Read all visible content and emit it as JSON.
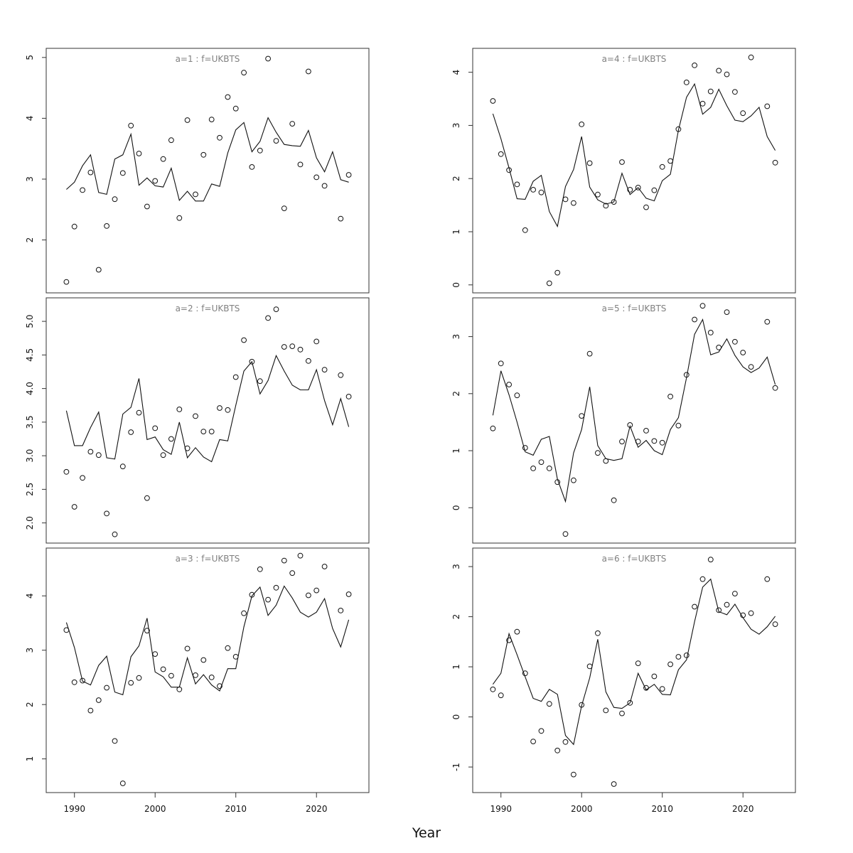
{
  "chart_data": {
    "type": "line",
    "xlabel": "Year",
    "x": [
      1989,
      1990,
      1991,
      1992,
      1993,
      1994,
      1995,
      1996,
      1997,
      1998,
      1999,
      2000,
      2001,
      2002,
      2003,
      2004,
      2005,
      2006,
      2007,
      2008,
      2009,
      2010,
      2011,
      2012,
      2013,
      2014,
      2015,
      2016,
      2017,
      2018,
      2019,
      2020,
      2021,
      2022,
      2023,
      2024
    ],
    "xticks": [
      1990,
      2000,
      2010,
      2020
    ],
    "xlim": [
      1986.5,
      2026.5
    ],
    "colors": {
      "line": "#111111",
      "points": "#111111",
      "title": "#808080",
      "frame": "#333333"
    },
    "panels": [
      {
        "title": "a=1  :  f=UKBTS",
        "ylim": [
          1.13,
          5.15
        ],
        "yticks": [
          2,
          3,
          4,
          5
        ],
        "ytick_labels": [
          "2",
          "3",
          "4",
          "5"
        ],
        "fitted": [
          2.83,
          2.95,
          3.22,
          3.4,
          2.78,
          2.75,
          3.33,
          3.4,
          3.74,
          2.9,
          3.02,
          2.89,
          2.87,
          3.18,
          2.65,
          2.8,
          2.64,
          2.64,
          2.92,
          2.88,
          3.43,
          3.81,
          3.93,
          3.45,
          3.62,
          4.01,
          3.77,
          3.57,
          3.55,
          3.54,
          3.8,
          3.35,
          3.12,
          3.45,
          2.99,
          2.95
        ],
        "observed": [
          [
            1989,
            1.31
          ],
          [
            1990,
            2.22
          ],
          [
            1991,
            2.82
          ],
          [
            1992,
            3.11
          ],
          [
            1993,
            1.51
          ],
          [
            1994,
            2.23
          ],
          [
            1995,
            2.67
          ],
          [
            1996,
            3.1
          ],
          [
            1997,
            3.88
          ],
          [
            1998,
            3.42
          ],
          [
            1999,
            2.55
          ],
          [
            2000,
            2.97
          ],
          [
            2001,
            3.33
          ],
          [
            2002,
            3.64
          ],
          [
            2003,
            2.36
          ],
          [
            2004,
            3.97
          ],
          [
            2006,
            3.4
          ],
          [
            2005,
            2.75
          ],
          [
            2007,
            3.98
          ],
          [
            2008,
            3.68
          ],
          [
            2009,
            4.35
          ],
          [
            2010,
            4.16
          ],
          [
            2011,
            4.75
          ],
          [
            2012,
            3.2
          ],
          [
            2013,
            3.47
          ],
          [
            2014,
            4.98
          ],
          [
            2015,
            3.63
          ],
          [
            2016,
            2.52
          ],
          [
            2017,
            3.91
          ],
          [
            2018,
            3.24
          ],
          [
            2019,
            4.77
          ],
          [
            2020,
            3.03
          ],
          [
            2021,
            2.89
          ],
          [
            2023,
            2.35
          ],
          [
            2024,
            3.07
          ]
        ]
      },
      {
        "title": "a=2  :  f=UKBTS",
        "ylim": [
          1.7,
          5.35
        ],
        "yticks": [
          2.0,
          2.5,
          3.0,
          3.5,
          4.0,
          4.5,
          5.0
        ],
        "ytick_labels": [
          "2.0",
          "2.5",
          "3.0",
          "3.5",
          "4.0",
          "4.5",
          "5.0"
        ],
        "fitted": [
          3.67,
          3.15,
          3.15,
          3.42,
          3.65,
          2.97,
          2.95,
          3.62,
          3.72,
          4.15,
          3.24,
          3.28,
          3.09,
          3.02,
          3.5,
          2.97,
          3.12,
          2.98,
          2.91,
          3.24,
          3.22,
          3.75,
          4.26,
          4.4,
          3.92,
          4.12,
          4.49,
          4.26,
          4.05,
          3.98,
          3.98,
          4.28,
          3.82,
          3.46,
          3.85,
          3.43
        ],
        "observed": [
          [
            1989,
            2.76
          ],
          [
            1990,
            2.24
          ],
          [
            1991,
            2.67
          ],
          [
            1992,
            3.06
          ],
          [
            1993,
            3.01
          ],
          [
            1994,
            2.14
          ],
          [
            1995,
            1.83
          ],
          [
            1996,
            2.84
          ],
          [
            1997,
            3.35
          ],
          [
            1998,
            3.64
          ],
          [
            1999,
            2.37
          ],
          [
            2000,
            3.41
          ],
          [
            2001,
            3.01
          ],
          [
            2002,
            3.25
          ],
          [
            2003,
            3.69
          ],
          [
            2004,
            3.11
          ],
          [
            2005,
            3.59
          ],
          [
            2006,
            3.36
          ],
          [
            2007,
            3.36
          ],
          [
            2008,
            3.71
          ],
          [
            2009,
            3.68
          ],
          [
            2010,
            4.17
          ],
          [
            2011,
            4.72
          ],
          [
            2012,
            4.4
          ],
          [
            2013,
            4.11
          ],
          [
            2014,
            5.05
          ],
          [
            2015,
            5.18
          ],
          [
            2016,
            4.62
          ],
          [
            2017,
            4.63
          ],
          [
            2018,
            4.58
          ],
          [
            2019,
            4.41
          ],
          [
            2020,
            4.7
          ],
          [
            2021,
            4.28
          ],
          [
            2023,
            4.2
          ],
          [
            2024,
            3.88
          ]
        ]
      },
      {
        "title": "a=3  :  f=UKBTS",
        "ylim": [
          0.38,
          4.88
        ],
        "yticks": [
          1,
          2,
          3,
          4
        ],
        "ytick_labels": [
          "1",
          "2",
          "3",
          "4"
        ],
        "fitted": [
          3.51,
          3.05,
          2.43,
          2.36,
          2.72,
          2.89,
          2.23,
          2.18,
          2.88,
          3.08,
          3.59,
          2.6,
          2.51,
          2.32,
          2.32,
          2.86,
          2.38,
          2.55,
          2.36,
          2.25,
          2.66,
          2.66,
          3.43,
          4.0,
          4.16,
          3.64,
          3.83,
          4.18,
          3.96,
          3.7,
          3.61,
          3.7,
          3.95,
          3.4,
          3.06,
          3.56
        ],
        "observed": [
          [
            1989,
            3.37
          ],
          [
            1990,
            2.41
          ],
          [
            1991,
            2.44
          ],
          [
            1992,
            1.89
          ],
          [
            1993,
            2.08
          ],
          [
            1994,
            2.31
          ],
          [
            1995,
            1.33
          ],
          [
            1996,
            0.55
          ],
          [
            1997,
            2.4
          ],
          [
            1998,
            2.49
          ],
          [
            1999,
            3.36
          ],
          [
            2000,
            2.93
          ],
          [
            2001,
            2.65
          ],
          [
            2002,
            2.53
          ],
          [
            2003,
            2.28
          ],
          [
            2004,
            3.03
          ],
          [
            2005,
            2.54
          ],
          [
            2006,
            2.82
          ],
          [
            2007,
            2.5
          ],
          [
            2008,
            2.34
          ],
          [
            2009,
            3.04
          ],
          [
            2010,
            2.88
          ],
          [
            2011,
            3.68
          ],
          [
            2012,
            4.02
          ],
          [
            2013,
            4.49
          ],
          [
            2014,
            3.93
          ],
          [
            2015,
            4.15
          ],
          [
            2016,
            4.65
          ],
          [
            2017,
            4.42
          ],
          [
            2018,
            4.74
          ],
          [
            2019,
            4.01
          ],
          [
            2020,
            4.1
          ],
          [
            2021,
            4.54
          ],
          [
            2023,
            3.73
          ],
          [
            2024,
            4.03
          ]
        ]
      },
      {
        "title": "a=4  :  f=UKBTS",
        "ylim": [
          -0.15,
          4.45
        ],
        "yticks": [
          0,
          1,
          2,
          3,
          4
        ],
        "ytick_labels": [
          "0",
          "1",
          "2",
          "3",
          "4"
        ],
        "fitted": [
          3.22,
          2.75,
          2.2,
          1.62,
          1.61,
          1.95,
          2.06,
          1.38,
          1.1,
          1.85,
          2.17,
          2.79,
          1.84,
          1.6,
          1.52,
          1.56,
          2.1,
          1.7,
          1.83,
          1.63,
          1.58,
          1.96,
          2.08,
          2.91,
          3.53,
          3.78,
          3.21,
          3.34,
          3.68,
          3.37,
          3.1,
          3.07,
          3.18,
          3.34,
          2.79,
          2.53
        ],
        "observed": [
          [
            1989,
            3.46
          ],
          [
            1990,
            2.46
          ],
          [
            1991,
            2.16
          ],
          [
            1992,
            1.89
          ],
          [
            1993,
            1.03
          ],
          [
            1994,
            1.79
          ],
          [
            1995,
            1.74
          ],
          [
            1996,
            0.03
          ],
          [
            1997,
            0.23
          ],
          [
            1998,
            1.61
          ],
          [
            1999,
            1.54
          ],
          [
            2000,
            3.02
          ],
          [
            2001,
            2.29
          ],
          [
            2002,
            1.7
          ],
          [
            2003,
            1.49
          ],
          [
            2004,
            1.56
          ],
          [
            2005,
            2.31
          ],
          [
            2006,
            1.79
          ],
          [
            2007,
            1.83
          ],
          [
            2008,
            1.46
          ],
          [
            2009,
            1.78
          ],
          [
            2010,
            2.22
          ],
          [
            2011,
            2.33
          ],
          [
            2012,
            2.93
          ],
          [
            2013,
            3.81
          ],
          [
            2014,
            4.13
          ],
          [
            2015,
            3.41
          ],
          [
            2016,
            3.64
          ],
          [
            2017,
            4.03
          ],
          [
            2018,
            3.96
          ],
          [
            2019,
            3.63
          ],
          [
            2020,
            3.23
          ],
          [
            2021,
            4.28
          ],
          [
            2023,
            3.36
          ],
          [
            2024,
            2.3
          ]
        ]
      },
      {
        "title": "a=5  :  f=UKBTS",
        "ylim": [
          -0.62,
          3.68
        ],
        "yticks": [
          0,
          1,
          2,
          3
        ],
        "ytick_labels": [
          "0",
          "1",
          "2",
          "3"
        ],
        "fitted": [
          1.62,
          2.4,
          1.98,
          1.5,
          0.98,
          0.92,
          1.2,
          1.25,
          0.5,
          0.11,
          0.96,
          1.37,
          2.12,
          1.09,
          0.86,
          0.83,
          0.86,
          1.43,
          1.06,
          1.18,
          1.0,
          0.93,
          1.37,
          1.58,
          2.28,
          3.04,
          3.3,
          2.68,
          2.73,
          2.96,
          2.67,
          2.47,
          2.37,
          2.45,
          2.64,
          2.16
        ],
        "observed": [
          [
            1989,
            1.39
          ],
          [
            1990,
            2.53
          ],
          [
            1991,
            2.16
          ],
          [
            1992,
            1.97
          ],
          [
            1993,
            1.05
          ],
          [
            1994,
            0.69
          ],
          [
            1995,
            0.8
          ],
          [
            1996,
            0.69
          ],
          [
            1997,
            0.45
          ],
          [
            1998,
            -0.46
          ],
          [
            1999,
            0.48
          ],
          [
            2000,
            1.61
          ],
          [
            2001,
            2.7
          ],
          [
            2002,
            0.96
          ],
          [
            2003,
            0.82
          ],
          [
            2004,
            0.13
          ],
          [
            2005,
            1.16
          ],
          [
            2006,
            1.45
          ],
          [
            2007,
            1.16
          ],
          [
            2008,
            1.35
          ],
          [
            2009,
            1.17
          ],
          [
            2010,
            1.14
          ],
          [
            2011,
            1.95
          ],
          [
            2012,
            1.44
          ],
          [
            2013,
            2.33
          ],
          [
            2014,
            3.3
          ],
          [
            2015,
            3.54
          ],
          [
            2016,
            3.07
          ],
          [
            2017,
            2.81
          ],
          [
            2018,
            3.43
          ],
          [
            2019,
            2.91
          ],
          [
            2020,
            2.72
          ],
          [
            2021,
            2.47
          ],
          [
            2023,
            3.26
          ],
          [
            2024,
            2.1
          ]
        ]
      },
      {
        "title": "a=6  :  f=UKBTS",
        "ylim": [
          -1.51,
          3.37
        ],
        "yticks": [
          -1,
          0,
          1,
          2,
          3
        ],
        "ytick_labels": [
          "-1",
          "0",
          "1",
          "2",
          "3"
        ],
        "fitted": [
          0.65,
          0.87,
          1.66,
          1.24,
          0.8,
          0.37,
          0.31,
          0.55,
          0.45,
          -0.37,
          -0.55,
          0.22,
          0.78,
          1.55,
          0.5,
          0.19,
          0.17,
          0.28,
          0.87,
          0.54,
          0.65,
          0.45,
          0.44,
          0.94,
          1.14,
          1.9,
          2.59,
          2.75,
          2.1,
          2.04,
          2.25,
          1.98,
          1.75,
          1.65,
          1.8,
          2.01
        ],
        "observed": [
          [
            1989,
            0.55
          ],
          [
            1990,
            0.43
          ],
          [
            1991,
            1.53
          ],
          [
            1992,
            1.7
          ],
          [
            1993,
            0.87
          ],
          [
            1994,
            -0.49
          ],
          [
            1995,
            -0.28
          ],
          [
            1996,
            0.26
          ],
          [
            1997,
            -0.67
          ],
          [
            1998,
            -0.5
          ],
          [
            1999,
            -1.15
          ],
          [
            2000,
            0.24
          ],
          [
            2001,
            1.01
          ],
          [
            2002,
            1.67
          ],
          [
            2003,
            0.13
          ],
          [
            2004,
            -1.34
          ],
          [
            2005,
            0.07
          ],
          [
            2006,
            0.28
          ],
          [
            2007,
            1.07
          ],
          [
            2008,
            0.58
          ],
          [
            2009,
            0.81
          ],
          [
            2010,
            0.56
          ],
          [
            2011,
            1.05
          ],
          [
            2012,
            1.2
          ],
          [
            2013,
            1.23
          ],
          [
            2014,
            2.2
          ],
          [
            2015,
            2.75
          ],
          [
            2016,
            3.14
          ],
          [
            2017,
            2.13
          ],
          [
            2018,
            2.24
          ],
          [
            2019,
            2.46
          ],
          [
            2020,
            2.03
          ],
          [
            2021,
            2.07
          ],
          [
            2023,
            2.75
          ],
          [
            2024,
            1.85
          ]
        ]
      }
    ]
  }
}
